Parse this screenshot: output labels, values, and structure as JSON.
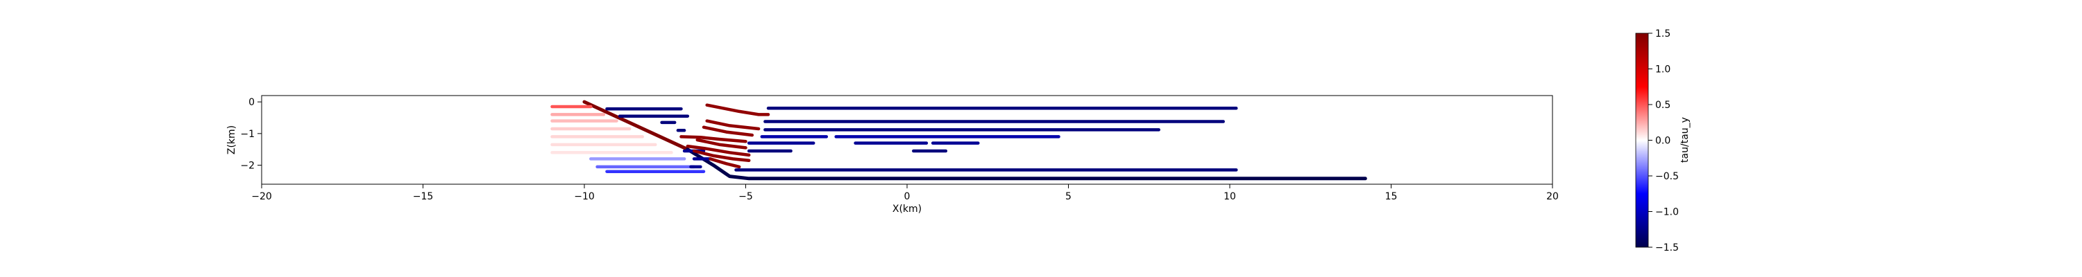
{
  "chart_data": {
    "type": "line",
    "title": "",
    "xlabel": "X(km)",
    "ylabel": "Z(km)",
    "xlim": [
      -20,
      20
    ],
    "ylim": [
      -2.6,
      0.2
    ],
    "xticks": [
      "−20",
      "−15",
      "−10",
      "−5",
      "0",
      "5",
      "10",
      "15",
      "20"
    ],
    "xtick_values": [
      -20,
      -15,
      -10,
      -5,
      0,
      5,
      10,
      15,
      20
    ],
    "yticks": [
      "0",
      "−1",
      "−2"
    ],
    "ytick_values": [
      0,
      -1,
      -2
    ],
    "grid": false,
    "colorbar": {
      "label": "tau/tau_y",
      "range": [
        -1.5,
        1.5
      ],
      "ticks": [
        "1.5",
        "1.0",
        "0.5",
        "0.0",
        "−0.5",
        "−1.0",
        "−1.5"
      ],
      "tick_values": [
        1.5,
        1.0,
        0.5,
        0.0,
        -0.5,
        -1.0,
        -1.5
      ],
      "colormap": "seismic"
    },
    "segments": [
      {
        "name": "main-fault-upper",
        "value": 1.5,
        "points": [
          [
            -10.0,
            0.0
          ],
          [
            -6.8,
            -1.5
          ]
        ]
      },
      {
        "name": "main-fault-lower",
        "value": -1.5,
        "points": [
          [
            -6.8,
            -1.5
          ],
          [
            -6.0,
            -2.0
          ],
          [
            -5.5,
            -2.35
          ],
          [
            -4.9,
            -2.42
          ],
          [
            14.2,
            -2.42
          ]
        ]
      },
      {
        "name": "faint-splay-1",
        "value": 0.5,
        "points": [
          [
            -11.0,
            -0.15
          ],
          [
            -9.8,
            -0.15
          ]
        ]
      },
      {
        "name": "faint-splay-2",
        "value": 0.25,
        "points": [
          [
            -11.0,
            -0.4
          ],
          [
            -9.4,
            -0.4
          ]
        ]
      },
      {
        "name": "faint-splay-3",
        "value": 0.2,
        "points": [
          [
            -11.0,
            -0.6
          ],
          [
            -9.0,
            -0.6
          ]
        ]
      },
      {
        "name": "faint-splay-4",
        "value": 0.15,
        "points": [
          [
            -11.0,
            -0.85
          ],
          [
            -8.6,
            -0.85
          ]
        ]
      },
      {
        "name": "faint-splay-5",
        "value": 0.12,
        "points": [
          [
            -11.0,
            -1.1
          ],
          [
            -8.2,
            -1.1
          ]
        ]
      },
      {
        "name": "faint-splay-6",
        "value": 0.1,
        "points": [
          [
            -11.0,
            -1.35
          ],
          [
            -7.8,
            -1.35
          ]
        ]
      },
      {
        "name": "faint-splay-7",
        "value": 0.08,
        "points": [
          [
            -11.0,
            -1.6
          ],
          [
            -7.3,
            -1.6
          ]
        ]
      },
      {
        "name": "faint-tail-1",
        "value": -0.3,
        "points": [
          [
            -9.8,
            -1.8
          ],
          [
            -6.9,
            -1.8
          ]
        ]
      },
      {
        "name": "faint-tail-2",
        "value": -0.45,
        "points": [
          [
            -9.6,
            -2.05
          ],
          [
            -6.6,
            -2.05
          ]
        ]
      },
      {
        "name": "faint-tail-3",
        "value": -0.6,
        "points": [
          [
            -9.3,
            -2.2
          ],
          [
            -6.3,
            -2.2
          ]
        ]
      },
      {
        "name": "blue-upper-1",
        "value": -1.3,
        "points": [
          [
            -9.3,
            -0.22
          ],
          [
            -7.0,
            -0.22
          ]
        ]
      },
      {
        "name": "blue-upper-2",
        "value": -1.3,
        "points": [
          [
            -8.9,
            -0.45
          ],
          [
            -6.8,
            -0.45
          ]
        ]
      },
      {
        "name": "blue-upper-3",
        "value": -1.3,
        "points": [
          [
            -7.6,
            -0.65
          ],
          [
            -7.2,
            -0.65
          ]
        ]
      },
      {
        "name": "blue-upper-4",
        "value": -1.3,
        "points": [
          [
            -7.1,
            -0.9
          ],
          [
            -6.9,
            -0.9
          ]
        ]
      },
      {
        "name": "blue-wedge-1",
        "value": -1.2,
        "points": [
          [
            -6.9,
            -1.55
          ],
          [
            -6.3,
            -1.55
          ]
        ]
      },
      {
        "name": "blue-wedge-2",
        "value": -1.2,
        "points": [
          [
            -6.6,
            -1.8
          ],
          [
            -6.1,
            -1.8
          ]
        ]
      },
      {
        "name": "blue-wedge-3",
        "value": -1.2,
        "points": [
          [
            -6.7,
            -2.05
          ],
          [
            -6.4,
            -2.05
          ]
        ]
      },
      {
        "name": "red-splay-1",
        "value": 1.4,
        "points": [
          [
            -6.2,
            -0.1
          ],
          [
            -5.2,
            -0.3
          ],
          [
            -4.6,
            -0.4
          ],
          [
            -4.3,
            -0.4
          ]
        ]
      },
      {
        "name": "red-splay-2",
        "value": 1.4,
        "points": [
          [
            -6.2,
            -0.6
          ],
          [
            -5.5,
            -0.75
          ],
          [
            -4.6,
            -0.85
          ]
        ]
      },
      {
        "name": "red-splay-3",
        "value": 1.4,
        "points": [
          [
            -6.3,
            -0.8
          ],
          [
            -5.6,
            -0.95
          ],
          [
            -4.8,
            -1.05
          ]
        ]
      },
      {
        "name": "red-splay-4",
        "value": 1.4,
        "points": [
          [
            -7.0,
            -1.1
          ],
          [
            -6.4,
            -1.12
          ],
          [
            -5.8,
            -1.18
          ],
          [
            -5.0,
            -1.25
          ]
        ]
      },
      {
        "name": "red-splay-5",
        "value": 1.4,
        "points": [
          [
            -6.5,
            -1.2
          ],
          [
            -5.8,
            -1.35
          ],
          [
            -5.0,
            -1.45
          ]
        ]
      },
      {
        "name": "red-splay-6",
        "value": 1.4,
        "points": [
          [
            -6.8,
            -1.4
          ],
          [
            -6.2,
            -1.48
          ],
          [
            -5.5,
            -1.6
          ],
          [
            -4.9,
            -1.68
          ]
        ]
      },
      {
        "name": "red-splay-7",
        "value": 1.4,
        "points": [
          [
            -6.6,
            -1.55
          ],
          [
            -6.0,
            -1.7
          ],
          [
            -5.4,
            -1.8
          ],
          [
            -4.9,
            -1.85
          ]
        ]
      },
      {
        "name": "red-splay-8",
        "value": 1.4,
        "points": [
          [
            -6.1,
            -1.8
          ],
          [
            -5.6,
            -1.95
          ],
          [
            -5.2,
            -2.05
          ]
        ]
      },
      {
        "name": "blue-layer-1",
        "value": -1.3,
        "points": [
          [
            -4.3,
            -0.2
          ],
          [
            10.2,
            -0.2
          ]
        ]
      },
      {
        "name": "blue-layer-2",
        "value": -1.3,
        "points": [
          [
            -4.4,
            -0.62
          ],
          [
            9.8,
            -0.62
          ]
        ]
      },
      {
        "name": "blue-layer-3",
        "value": -1.3,
        "points": [
          [
            -4.4,
            -0.88
          ],
          [
            7.8,
            -0.88
          ]
        ]
      },
      {
        "name": "blue-layer-4a",
        "value": -1.1,
        "points": [
          [
            -4.5,
            -1.1
          ],
          [
            -2.5,
            -1.1
          ]
        ]
      },
      {
        "name": "blue-layer-4b",
        "value": -1.1,
        "points": [
          [
            -2.2,
            -1.1
          ],
          [
            4.7,
            -1.1
          ]
        ]
      },
      {
        "name": "blue-layer-5a",
        "value": -1.2,
        "points": [
          [
            -4.9,
            -1.3
          ],
          [
            -2.9,
            -1.3
          ]
        ]
      },
      {
        "name": "blue-layer-5b",
        "value": -1.2,
        "points": [
          [
            -1.6,
            -1.3
          ],
          [
            0.6,
            -1.3
          ]
        ]
      },
      {
        "name": "blue-layer-5c",
        "value": -1.2,
        "points": [
          [
            0.8,
            -1.3
          ],
          [
            2.2,
            -1.3
          ]
        ]
      },
      {
        "name": "blue-layer-6a",
        "value": -1.3,
        "points": [
          [
            -4.9,
            -1.55
          ],
          [
            -3.6,
            -1.55
          ]
        ]
      },
      {
        "name": "blue-layer-6b",
        "value": -1.3,
        "points": [
          [
            0.2,
            -1.55
          ],
          [
            1.2,
            -1.55
          ]
        ]
      },
      {
        "name": "blue-layer-7",
        "value": -1.3,
        "points": [
          [
            -5.3,
            -2.15
          ],
          [
            10.2,
            -2.15
          ]
        ]
      }
    ]
  }
}
